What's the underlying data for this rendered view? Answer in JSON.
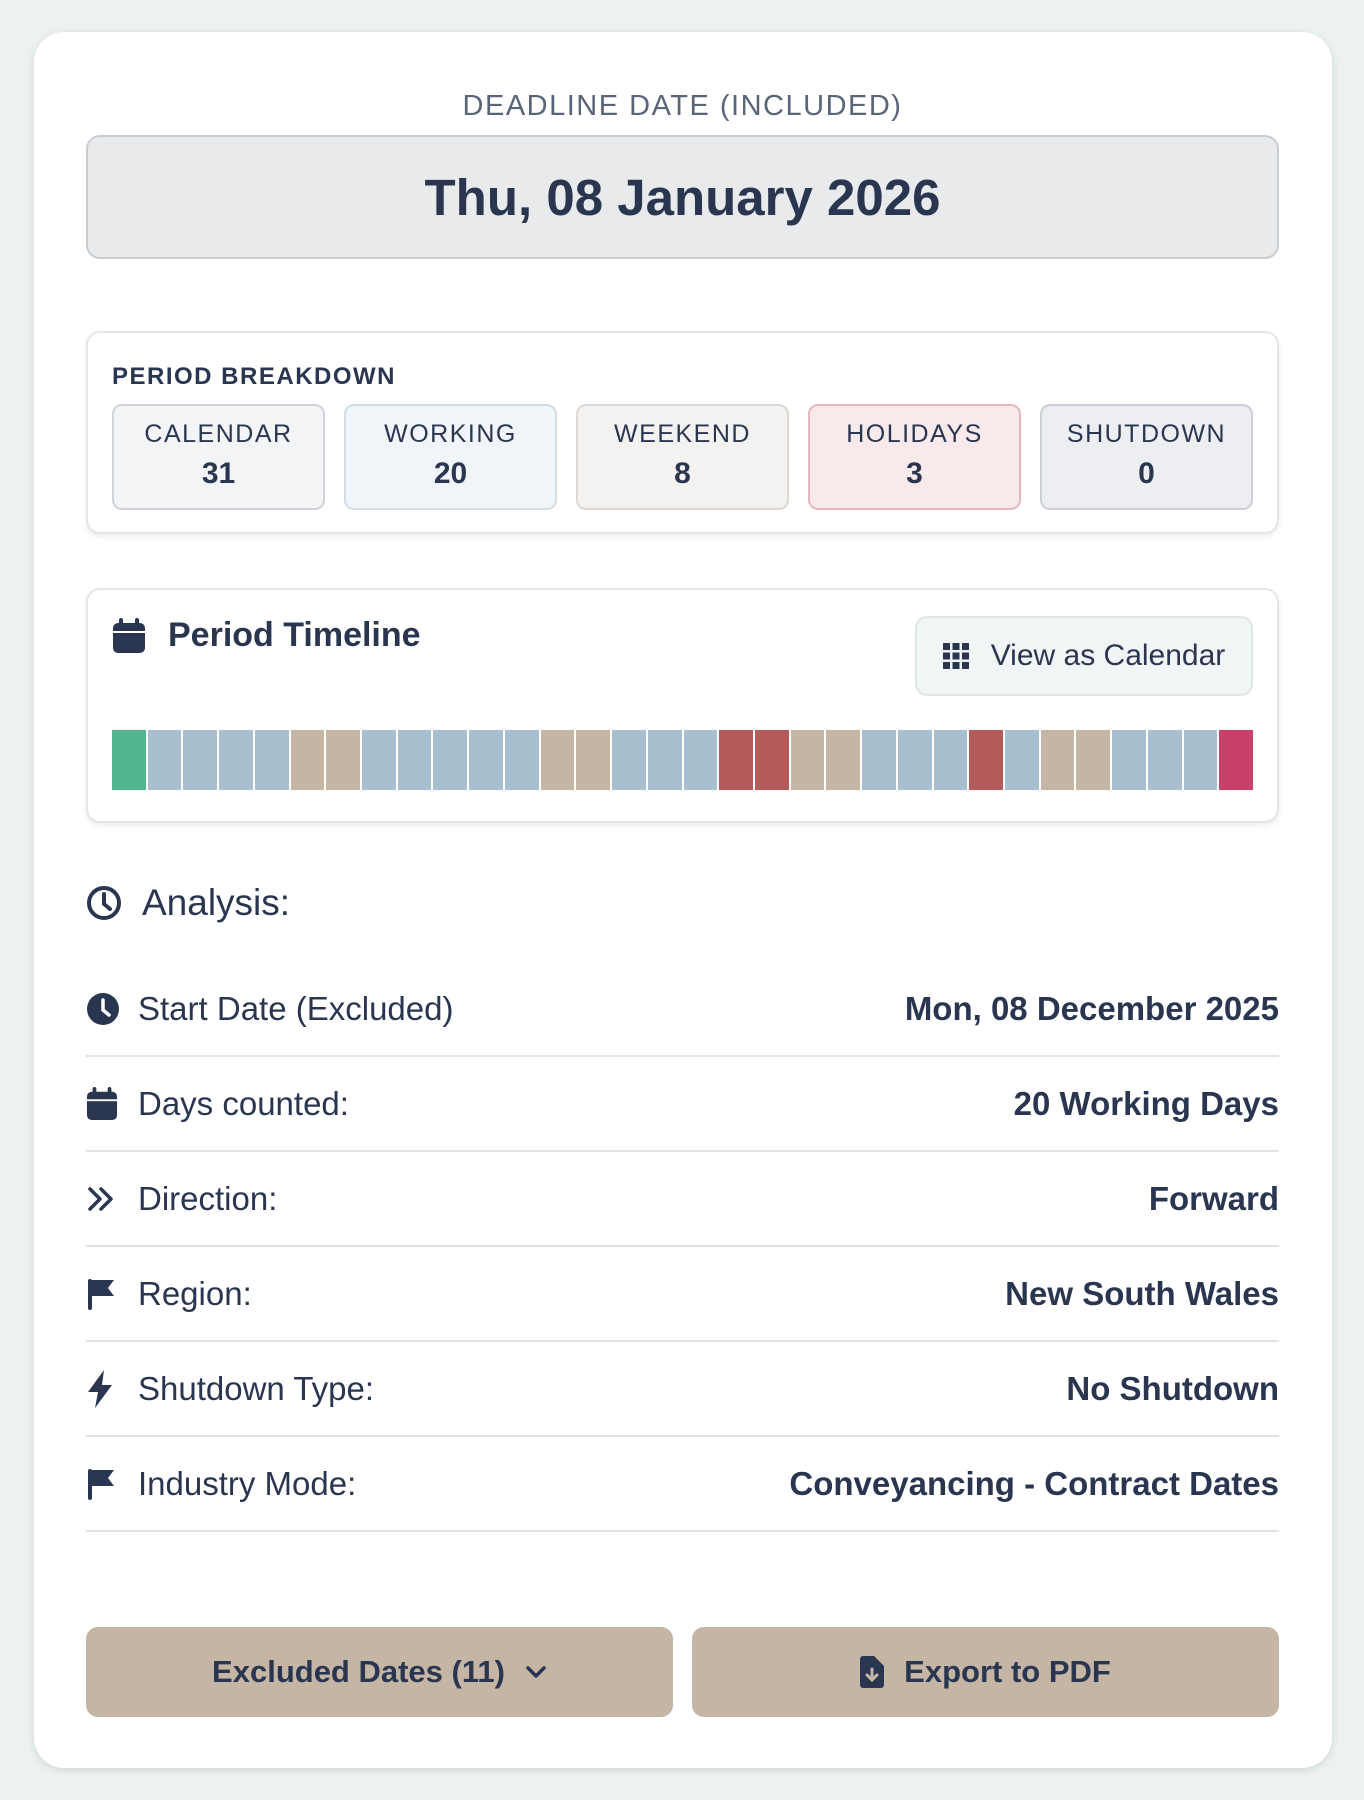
{
  "deadline": {
    "label": "DEADLINE DATE (INCLUDED)",
    "date": "Thu, 08 January 2026"
  },
  "breakdown": {
    "title": "PERIOD BREAKDOWN",
    "tiles": [
      {
        "label": "CALENDAR",
        "value": "31",
        "bg": "#f2f4f6",
        "border": "#cfd3d9"
      },
      {
        "label": "WORKING",
        "value": "20",
        "bg": "#eff5f9",
        "border": "#d2dde6"
      },
      {
        "label": "WEEKEND",
        "value": "8",
        "bg": "#f4f2f0",
        "border": "#ddd8d3"
      },
      {
        "label": "HOLIDAYS",
        "value": "3",
        "bg": "#f8e9ea",
        "border": "#e3b9bd"
      },
      {
        "label": "SHUTDOWN",
        "value": "0",
        "bg": "#eceef2",
        "border": "#cdd0d8"
      }
    ]
  },
  "timeline": {
    "title": "Period Timeline",
    "view_button": "View as Calendar",
    "colors": {
      "S": "#52b68f",
      "W": "#a8bfd0",
      "E": "#c4b5a5",
      "H": "#b45c5b",
      "D": "#c8406a"
    },
    "days": [
      "S",
      "W",
      "W",
      "W",
      "W",
      "E",
      "E",
      "W",
      "W",
      "W",
      "W",
      "W",
      "E",
      "E",
      "W",
      "W",
      "W",
      "H",
      "H",
      "E",
      "E",
      "W",
      "W",
      "W",
      "H",
      "W",
      "E",
      "E",
      "W",
      "W",
      "W",
      "D"
    ]
  },
  "analysis": {
    "title": "Analysis:",
    "rows": [
      {
        "icon": "clock-icon",
        "label": "Start Date (Excluded)",
        "value": "Mon, 08 December 2025"
      },
      {
        "icon": "calendar-icon",
        "label": "Days counted:",
        "value": "20 Working Days"
      },
      {
        "icon": "double-chevron-right-icon",
        "label": "Direction:",
        "value": "Forward"
      },
      {
        "icon": "flag-icon",
        "label": "Region:",
        "value": "New South Wales"
      },
      {
        "icon": "bolt-icon",
        "label": "Shutdown Type:",
        "value": "No Shutdown"
      },
      {
        "icon": "flag-icon",
        "label": "Industry Mode:",
        "value": "Conveyancing - Contract Dates"
      }
    ]
  },
  "actions": {
    "excluded": "Excluded Dates (11)",
    "export": "Export to PDF"
  }
}
